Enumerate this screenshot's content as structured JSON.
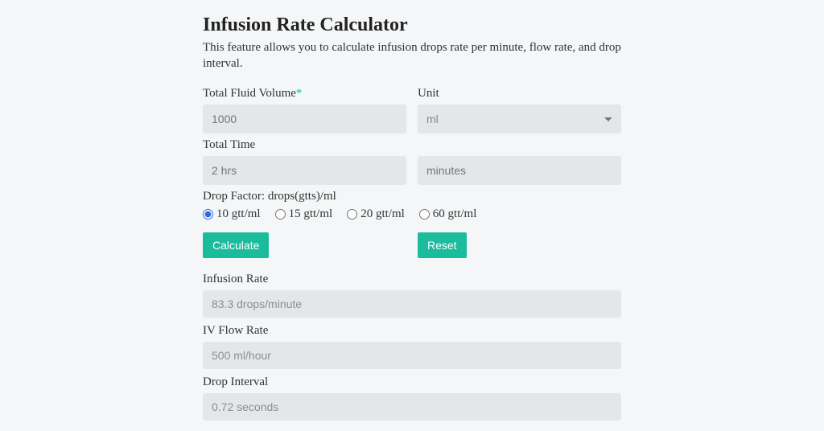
{
  "header": {
    "title": "Infusion Rate Calculator",
    "subtitle": "This feature allows you to calculate infusion drops rate per minute, flow rate, and drop interval."
  },
  "fields": {
    "volume_label": "Total Fluid Volume",
    "volume_required_mark": "*",
    "volume_placeholder": "1000",
    "unit_label": "Unit",
    "unit_value": "ml",
    "time_label": "Total Time",
    "time_hours_placeholder": "2 hrs",
    "time_minutes_placeholder": "minutes",
    "drop_factor_label": "Drop Factor: drops(gtts)/ml",
    "drop_options": [
      {
        "label": "10 gtt/ml",
        "checked": true
      },
      {
        "label": "15 gtt/ml",
        "checked": false
      },
      {
        "label": "20 gtt/ml",
        "checked": false
      },
      {
        "label": "60 gtt/ml",
        "checked": false
      }
    ]
  },
  "buttons": {
    "calculate": "Calculate",
    "reset": "Reset"
  },
  "results": {
    "infusion_rate_label": "Infusion Rate",
    "infusion_rate_value": "83.3 drops/minute",
    "flow_rate_label": "IV Flow Rate",
    "flow_rate_value": "500 ml/hour",
    "drop_interval_label": "Drop Interval",
    "drop_interval_value": "0.72 seconds"
  },
  "style": {
    "accent": "#1abc9c",
    "bg": "#f4f6f7",
    "control_bg": "#e4e7e9"
  }
}
